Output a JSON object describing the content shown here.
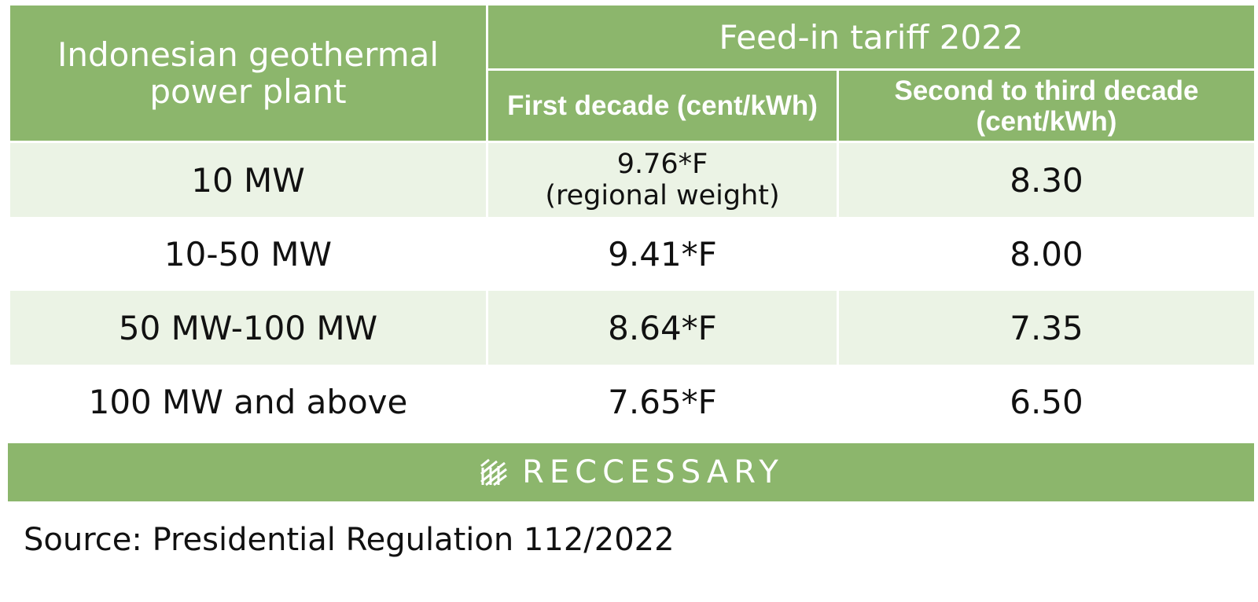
{
  "table": {
    "corner_header": "Indonesian geothermal power plant",
    "group_header": "Feed-in tariff 2022",
    "col_first": "First decade (cent/kWh)",
    "col_second_line1": "Second to third decade",
    "col_second_line2": "(cent/kWh)",
    "rows": [
      {
        "capacity": "10 MW",
        "first": "9.76*F",
        "first_note": "(regional weight)",
        "second": "8.30"
      },
      {
        "capacity": "10-50 MW",
        "first": "9.41*F",
        "first_note": "",
        "second": "8.00"
      },
      {
        "capacity": "50 MW-100 MW",
        "first": "8.64*F",
        "first_note": "",
        "second": "7.35"
      },
      {
        "capacity": "100 MW and above",
        "first": "7.65*F",
        "first_note": "",
        "second": "6.50"
      }
    ]
  },
  "brand": {
    "name": "RECCESSARY",
    "logo_icon": "reccessary-logo-icon"
  },
  "source": "Source: Presidential Regulation 112/2022",
  "colors": {
    "header_green": "#8cb66c",
    "band_light_green": "#ebf3e5",
    "text": "#111111"
  }
}
